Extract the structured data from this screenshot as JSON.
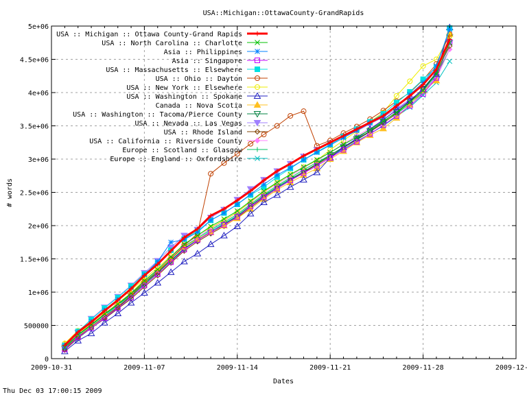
{
  "chart_data": {
    "type": "line",
    "title": "USA::Michigan::OttawaCounty-GrandRapids",
    "xlabel": "Dates",
    "ylabel": "# words",
    "timestamp": "Thu Dec 03 17:00:15 2009",
    "xlim": [
      "2009-10-31",
      "2009-12-05"
    ],
    "ylim": [
      0,
      5000000
    ],
    "x_ticks": [
      "2009-10-31",
      "2009-11-07",
      "2009-11-14",
      "2009-11-21",
      "2009-11-28",
      "2009-12-05"
    ],
    "y_ticks": [
      0,
      500000,
      1000000,
      1500000,
      2000000,
      2500000,
      3000000,
      3500000,
      4000000,
      4500000,
      5000000
    ],
    "y_tick_labels": [
      "0",
      "500000",
      "1e+06",
      "1.5e+06",
      "2e+06",
      "2.5e+06",
      "3e+06",
      "3.5e+06",
      "4e+06",
      "4.5e+06",
      "5e+06"
    ],
    "grid": true,
    "legend_placement": "top-left",
    "x_start": "2009-11-01",
    "x_step_days": 1,
    "series": [
      {
        "name": "USA :: Michigan :: Ottawa County-Grand Rapids",
        "color": "#ff0000",
        "marker": "plus",
        "bold": true,
        "values": [
          200000,
          400000,
          550000,
          720000,
          880000,
          1050000,
          1250000,
          1420000,
          1620000,
          1820000,
          1950000,
          2150000,
          2250000,
          2380000,
          2520000,
          2680000,
          2820000,
          2930000,
          3050000,
          3150000,
          3250000,
          3350000,
          3450000,
          3550000,
          3650000,
          3800000,
          3950000,
          4120000,
          4350000,
          4800000
        ]
      },
      {
        "name": "USA :: North Carolina :: Charlotte",
        "color": "#00c000",
        "marker": "cross",
        "values": [
          170000,
          360000,
          510000,
          670000,
          820000,
          980000,
          1170000,
          1340000,
          1530000,
          1720000,
          1850000,
          1990000,
          2100000,
          2220000,
          2370000,
          2520000,
          2650000,
          2770000,
          2880000,
          2990000,
          3100000,
          3220000,
          3330000,
          3440000,
          3570000,
          3700000,
          3850000,
          4030000,
          4280000,
          4750000
        ]
      },
      {
        "name": "Asia :: Philippines",
        "color": "#0080ff",
        "marker": "star",
        "values": [
          190000,
          390000,
          560000,
          730000,
          890000,
          1060000,
          1260000,
          1460000,
          1750000,
          1790000,
          1900000,
          2080000,
          2190000,
          2320000,
          2470000,
          2620000,
          2760000,
          2870000,
          2990000,
          3100000,
          3210000,
          3320000,
          3430000,
          3540000,
          3650000,
          3800000,
          3970000,
          4150000,
          4400000,
          4950000
        ]
      },
      {
        "name": "Asia :: Singapore",
        "color": "#c000ff",
        "marker": "square-open",
        "values": [
          140000,
          320000,
          460000,
          610000,
          760000,
          920000,
          1100000,
          1270000,
          1450000,
          1640000,
          1780000,
          1900000,
          2010000,
          2130000,
          2290000,
          2430000,
          2560000,
          2680000,
          2790000,
          2900000,
          3020000,
          3140000,
          3260000,
          3380000,
          3510000,
          3650000,
          3800000,
          3980000,
          4220000,
          4760000
        ]
      },
      {
        "name": "USA :: Massachusetts :: Elsewhere",
        "color": "#00e0e0",
        "marker": "square-filled",
        "values": [
          200000,
          410000,
          590000,
          760000,
          920000,
          1090000,
          1270000,
          1440000,
          1630000,
          1800000,
          1920000,
          2080000,
          2190000,
          2320000,
          2460000,
          2580000,
          2730000,
          2860000,
          2990000,
          3110000,
          3220000,
          3340000,
          3450000,
          3560000,
          3680000,
          3850000,
          4010000,
          4200000,
          4380000,
          4970000
        ]
      },
      {
        "name": "USA :: Ohio :: Dayton",
        "color": "#c04000",
        "marker": "circle-open",
        "values": [
          150000,
          330000,
          480000,
          630000,
          780000,
          950000,
          1150000,
          1300000,
          1500000,
          1700000,
          1880000,
          2780000,
          2940000,
          3080000,
          3230000,
          3370000,
          3500000,
          3650000,
          3720000,
          3200000,
          3280000,
          3390000,
          3490000,
          3600000,
          3730000,
          3870000,
          4000000,
          4190000,
          4430000,
          4880000
        ]
      },
      {
        "name": "USA :: New York :: Elsewhere",
        "color": "#eeee00",
        "marker": "circle-open",
        "values": [
          230000,
          420000,
          560000,
          720000,
          870000,
          1030000,
          1200000,
          1370000,
          1540000,
          1720000,
          1860000,
          1970000,
          2080000,
          2200000,
          2360000,
          2510000,
          2640000,
          2770000,
          2880000,
          2980000,
          3140000,
          3280000,
          3420000,
          3560000,
          3700000,
          3950000,
          4170000,
          4400000,
          4500000,
          4850000
        ]
      },
      {
        "name": "USA :: Washington :: Spokane",
        "color": "#2020c0",
        "marker": "triangle-open",
        "values": [
          110000,
          270000,
          380000,
          540000,
          680000,
          840000,
          990000,
          1140000,
          1300000,
          1460000,
          1580000,
          1720000,
          1850000,
          1990000,
          2180000,
          2350000,
          2460000,
          2580000,
          2690000,
          2800000,
          3020000,
          3180000,
          3310000,
          3450000,
          3590000,
          3740000,
          3880000,
          4050000,
          4280000,
          4980000
        ]
      },
      {
        "name": "Canada :: Nova Scotia",
        "color": "#ffc020",
        "marker": "triangle-filled",
        "values": [
          220000,
          380000,
          520000,
          680000,
          830000,
          990000,
          1180000,
          1330000,
          1500000,
          1680000,
          1800000,
          1900000,
          2000000,
          2110000,
          2250000,
          2400000,
          2540000,
          2650000,
          2760000,
          2860000,
          3000000,
          3120000,
          3250000,
          3360000,
          3460000,
          3620000,
          3820000,
          4030000,
          4180000,
          4880000
        ]
      },
      {
        "name": "USA :: Washington :: Tacoma/Pierce County",
        "color": "#008040",
        "marker": "triangle-down-open",
        "values": [
          150000,
          310000,
          460000,
          610000,
          770000,
          940000,
          1120000,
          1290000,
          1470000,
          1650000,
          1780000,
          1900000,
          2020000,
          2140000,
          2300000,
          2450000,
          2580000,
          2700000,
          2810000,
          2930000,
          3060000,
          3180000,
          3300000,
          3420000,
          3560000,
          3710000,
          3870000,
          4060000,
          4300000,
          4830000
        ]
      },
      {
        "name": "USA :: Nevada :: Las Vegas",
        "color": "#a080ff",
        "marker": "triangle-down-filled",
        "values": [
          170000,
          390000,
          600000,
          770000,
          930000,
          1100000,
          1290000,
          1470000,
          1670000,
          1850000,
          1940000,
          2120000,
          2240000,
          2390000,
          2550000,
          2690000,
          2820000,
          2930000,
          3040000,
          3140000,
          3240000,
          3340000,
          3420000,
          3530000,
          3630000,
          3760000,
          3900000,
          4020000,
          4240000,
          4750000
        ]
      },
      {
        "name": "USA :: Rhode Island",
        "color": "#804000",
        "marker": "diamond-open",
        "values": [
          130000,
          310000,
          460000,
          600000,
          750000,
          900000,
          1080000,
          1250000,
          1440000,
          1620000,
          1760000,
          1880000,
          1990000,
          2120000,
          2270000,
          2420000,
          2560000,
          2680000,
          2800000,
          2920000,
          3040000,
          3170000,
          3290000,
          3410000,
          3540000,
          3690000,
          3860000,
          4060000,
          4300000,
          4700000
        ]
      },
      {
        "name": "USA :: California :: Riverside County",
        "color": "#ff80ff",
        "marker": "diamond-filled",
        "values": [
          180000,
          360000,
          520000,
          680000,
          830000,
          990000,
          1170000,
          1340000,
          1520000,
          1710000,
          1830000,
          1960000,
          2070000,
          2200000,
          2350000,
          2500000,
          2630000,
          2750000,
          2870000,
          2980000,
          3100000,
          3230000,
          3350000,
          3460000,
          3590000,
          3730000,
          3870000,
          4030000,
          4210000,
          4650000
        ]
      },
      {
        "name": "Europe :: Scotland :: Glasgow",
        "color": "#00c060",
        "marker": "plus",
        "values": [
          160000,
          350000,
          500000,
          660000,
          810000,
          970000,
          1150000,
          1320000,
          1500000,
          1690000,
          1810000,
          1940000,
          2050000,
          2170000,
          2320000,
          2470000,
          2600000,
          2720000,
          2840000,
          2950000,
          3060000,
          3180000,
          3300000,
          3420000,
          3550000,
          3680000,
          3830000,
          4000000,
          4260000,
          4650000
        ]
      },
      {
        "name": "Europe :: England :: Oxfordshire",
        "color": "#00c0c0",
        "marker": "cross",
        "values": [
          140000,
          330000,
          480000,
          640000,
          800000,
          960000,
          1130000,
          1300000,
          1480000,
          1660000,
          1790000,
          1920000,
          2030000,
          2150000,
          2300000,
          2440000,
          2570000,
          2690000,
          2810000,
          2920000,
          3040000,
          3150000,
          3270000,
          3380000,
          3500000,
          3640000,
          3780000,
          3960000,
          4150000,
          4470000
        ]
      }
    ]
  }
}
